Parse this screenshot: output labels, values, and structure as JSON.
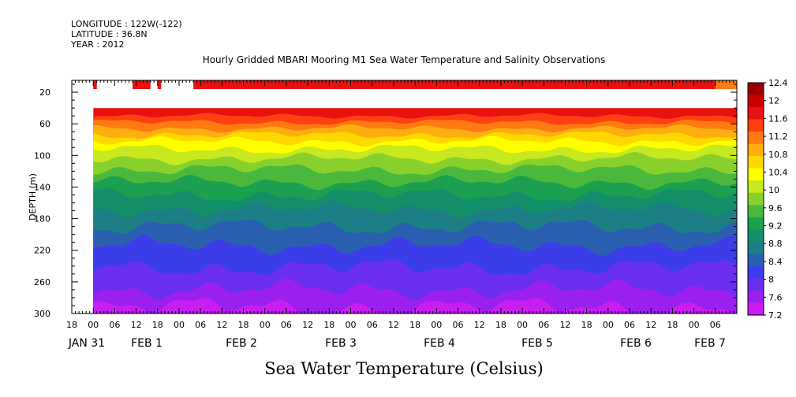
{
  "header": {
    "longitude": "LONGITUDE : 122W(-122)",
    "latitude": "LATITUDE : 36.8N",
    "year": "YEAR : 2012",
    "title": "Hourly Gridded MBARI Mooring M1 Sea Water Temperature and Salinity Observations"
  },
  "chart_data": {
    "type": "heatmap",
    "title": "Hourly Gridded MBARI Mooring M1 Sea Water Temperature and Salinity Observations",
    "xlabel": "Sea Water Temperature (Celsius)",
    "ylabel": "DEPTH (m)",
    "x_range_hours": [
      0,
      186
    ],
    "ylim": [
      300,
      5
    ],
    "y_ticks": [
      20,
      60,
      100,
      140,
      180,
      220,
      260,
      300
    ],
    "x_hour_labels": [
      "18",
      "00",
      "06",
      "12",
      "18",
      "00",
      "06",
      "12",
      "18",
      "00",
      "06",
      "12",
      "18",
      "00",
      "06",
      "12",
      "18",
      "00",
      "06",
      "12",
      "18",
      "00",
      "06",
      "12",
      "18",
      "00",
      "06",
      "12",
      "18",
      "00",
      "06"
    ],
    "x_day_labels": [
      "JAN 31",
      "FEB  1",
      "FEB  2",
      "FEB  3",
      "FEB  4",
      "FEB  5",
      "FEB  6",
      "FEB  7"
    ],
    "colorbar": {
      "levels": [
        "12.4",
        "12",
        "11.6",
        "11.2",
        "10.8",
        "10.4",
        "10",
        "9.6",
        "9.2",
        "8.8",
        "8.4",
        "8",
        "7.6",
        "7.2"
      ],
      "colors": [
        "#9b0000",
        "#c80000",
        "#e81010",
        "#ff4010",
        "#ff7a10",
        "#ffae10",
        "#ffd800",
        "#ffff00",
        "#c8e820",
        "#8ad02c",
        "#4ab83c",
        "#1aa050",
        "#13906a",
        "#1c7f86",
        "#2a5faf",
        "#3b3de8",
        "#6a2ef0",
        "#9b20f0",
        "#c81ef0"
      ],
      "min": 7.2,
      "max": 12.4
    },
    "surface_bins": [
      {
        "start_hour": 6,
        "end_hour": 7,
        "temp": 11.8
      },
      {
        "start_hour": 17,
        "end_hour": 22,
        "temp": 11.8
      },
      {
        "start_hour": 24,
        "end_hour": 25,
        "temp": 11.8
      },
      {
        "start_hour": 34,
        "end_hour": 180,
        "temp": 11.7
      },
      {
        "start_hour": 180,
        "end_hour": 186,
        "temp": 11.3
      }
    ],
    "profile_start_hour": 6,
    "profile_top_depth": 40,
    "band_depths": [
      40,
      50,
      58,
      66,
      74,
      82,
      92,
      104,
      118,
      134,
      150,
      168,
      190,
      214,
      242,
      270,
      292,
      300
    ]
  }
}
